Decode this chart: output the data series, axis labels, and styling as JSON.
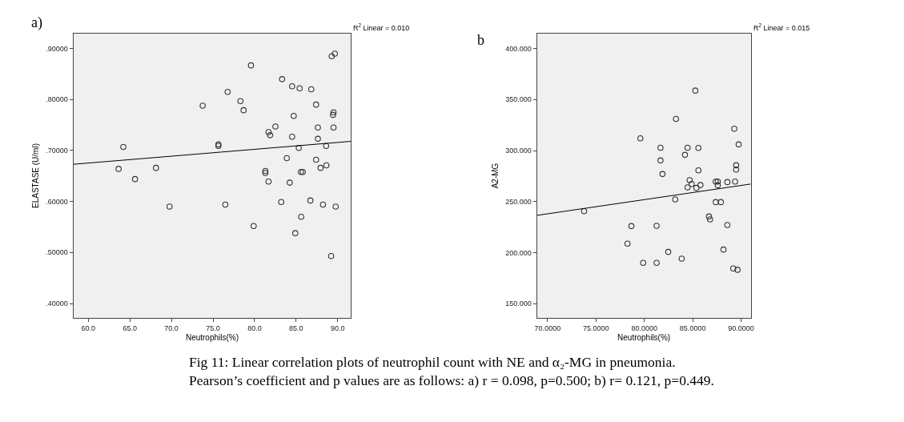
{
  "chart_data": [
    {
      "type": "scatter",
      "xlabel": "Neutrophils(%)",
      "ylabel": "ELASTASE (U/ml)",
      "xlim": [
        58.2,
        91.6
      ],
      "ylim": [
        0.372,
        0.929
      ],
      "xticks": [
        {
          "value": 60,
          "label": "60.0"
        },
        {
          "value": 65,
          "label": "65.0"
        },
        {
          "value": 70,
          "label": "70.0"
        },
        {
          "value": 75,
          "label": "75.0"
        },
        {
          "value": 80,
          "label": "80.0"
        },
        {
          "value": 85,
          "label": "85.0"
        },
        {
          "value": 90,
          "label": "90.0"
        }
      ],
      "yticks": [
        {
          "value": 0.4,
          "label": ".40000"
        },
        {
          "value": 0.5,
          "label": ".50000"
        },
        {
          "value": 0.6,
          "label": ".60000"
        },
        {
          "value": 0.7,
          "label": ".70000"
        },
        {
          "value": 0.8,
          "label": ".80000"
        },
        {
          "value": 0.9,
          "label": ".90000"
        }
      ],
      "grid": false,
      "annotations": [
        "a)",
        "R$^{2}$ Linear = 0.010"
      ],
      "series": [
        {
          "marker": "circle",
          "color": "#333333",
          "x": [
            89.28,
            89.66,
            79.57,
            83.31,
            84.52,
            85.42,
            86.82,
            76.76,
            78.3,
            73.76,
            87.4,
            78.68,
            89.5,
            89.44,
            84.71,
            82.51,
            87.62,
            89.5,
            81.68,
            81.87,
            84.52,
            87.62,
            64.21,
            75.65,
            75.65,
            88.61,
            85.32,
            83.88,
            87.4,
            63.64,
            68.14,
            87.94,
            88.64,
            81.3,
            81.3,
            85.58,
            85.8,
            65.62,
            81.68,
            84.23,
            83.21,
            86.72,
            76.48,
            88.23,
            89.76,
            69.77,
            85.61,
            79.89,
            84.9,
            89.21
          ],
          "values": [
            0.885,
            0.89,
            0.867,
            0.84,
            0.826,
            0.822,
            0.82,
            0.815,
            0.797,
            0.788,
            0.79,
            0.779,
            0.775,
            0.77,
            0.768,
            0.747,
            0.745,
            0.745,
            0.736,
            0.73,
            0.727,
            0.723,
            0.707,
            0.712,
            0.709,
            0.709,
            0.705,
            0.685,
            0.682,
            0.664,
            0.666,
            0.666,
            0.671,
            0.66,
            0.656,
            0.658,
            0.658,
            0.644,
            0.639,
            0.637,
            0.599,
            0.602,
            0.594,
            0.594,
            0.59,
            0.59,
            0.57,
            0.552,
            0.538,
            0.493
          ]
        },
        {
          "type": "line",
          "color": "#000000",
          "x": [
            58.2,
            91.6
          ],
          "values": [
            0.673,
            0.718
          ],
          "marker": "none"
        }
      ]
    },
    {
      "type": "scatter",
      "xlabel": "Neutrophils(%)",
      "ylabel": "A2-MG",
      "xlim": [
        68.9,
        91.0
      ],
      "ylim": [
        136.2,
        414.4
      ],
      "xticks": [
        {
          "value": 70,
          "label": "70.0000"
        },
        {
          "value": 75,
          "label": "75.0000"
        },
        {
          "value": 80,
          "label": "80.0000"
        },
        {
          "value": 85,
          "label": "85.0000"
        },
        {
          "value": 90,
          "label": "90.0000"
        }
      ],
      "yticks": [
        {
          "value": 150,
          "label": "150.000"
        },
        {
          "value": 200,
          "label": "200.000"
        },
        {
          "value": 250,
          "label": "250.000"
        },
        {
          "value": 300,
          "label": "300.000"
        },
        {
          "value": 350,
          "label": "350.000"
        },
        {
          "value": 400,
          "label": "400.000"
        }
      ],
      "grid": false,
      "annotations": [
        "b",
        "R$^{2}$ Linear = 0.015",
        "Fig 11: Linear correlation plots of neutrophil count with NE and α₂-MG in pneumonia. Pearson’s coefficient and p values are as follows: a) r = 0.098, p=0.500; b) r= 0.121, p=0.449."
      ],
      "series": [
        {
          "marker": "circle",
          "color": "#333333",
          "x": [
            85.27,
            83.27,
            89.3,
            79.59,
            89.75,
            81.67,
            84.47,
            85.59,
            84.2,
            81.67,
            89.49,
            89.49,
            85.59,
            81.88,
            84.68,
            89.38,
            87.38,
            87.59,
            88.58,
            84.89,
            85.8,
            87.59,
            84.47,
            85.38,
            83.19,
            87.38,
            87.91,
            73.77,
            86.68,
            86.79,
            78.66,
            81.27,
            88.58,
            78.26,
            82.47,
            88.18,
            79.88,
            81.27,
            83.86,
            89.19,
            89.63
          ],
          "values": [
            358.7,
            331.0,
            321.4,
            312.0,
            306.0,
            302.8,
            302.8,
            302.6,
            295.8,
            290.3,
            285.6,
            281.4,
            280.6,
            277.0,
            271.0,
            269.6,
            269.6,
            269.6,
            269.1,
            267.3,
            266.2,
            266.0,
            263.9,
            263.4,
            252.1,
            249.5,
            249.5,
            240.6,
            235.4,
            232.5,
            226.0,
            226.3,
            227.1,
            208.8,
            200.7,
            203.0,
            190.0,
            190.0,
            194.1,
            184.5,
            183.2
          ]
        },
        {
          "type": "line",
          "color": "#000000",
          "x": [
            68.9,
            91.0
          ],
          "values": [
            236.5,
            267.2
          ],
          "marker": "none"
        }
      ]
    }
  ]
}
